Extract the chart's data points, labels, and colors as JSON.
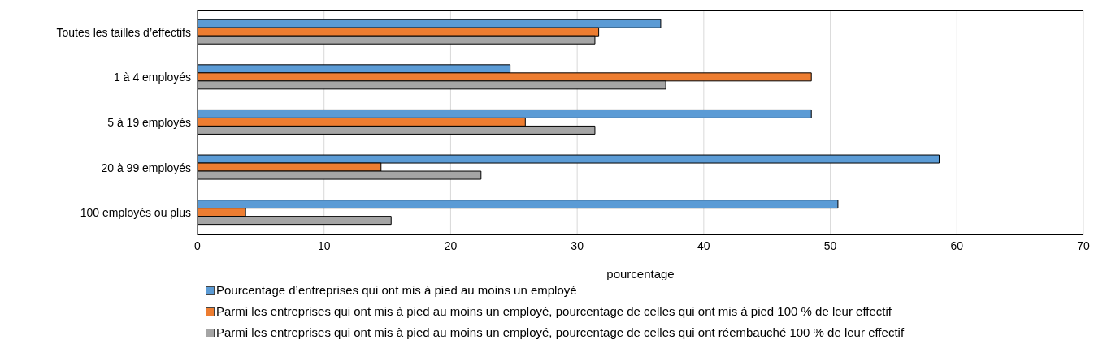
{
  "chart_data": {
    "type": "bar",
    "orientation": "horizontal",
    "xlabel": "pourcentage",
    "categories": [
      "Toutes les tailles d’effectifs",
      "1 à 4 employés",
      "5 à 19 employés",
      "20 à 99 employés",
      "100 employés ou plus"
    ],
    "series": [
      {
        "name": "Pourcentage d’entreprises qui ont mis à pied au moins un employé",
        "color": "#5b9bd5",
        "values": [
          36.6,
          24.7,
          48.5,
          58.6,
          50.6
        ]
      },
      {
        "name": "Parmi les entreprises qui ont mis à pied au moins un employé, pourcentage de celles qui ont mis à pied 100 % de leur effectif",
        "color": "#ed7d31",
        "values": [
          31.7,
          48.5,
          25.9,
          14.5,
          3.8
        ]
      },
      {
        "name": "Parmi les entreprises qui ont mis à pied au moins un employé, pourcentage de celles qui ont réembauché 100 % de leur effectif",
        "color": "#a5a5a5",
        "values": [
          31.4,
          37.0,
          31.4,
          22.4,
          15.3
        ]
      }
    ],
    "xlim": [
      0,
      70
    ],
    "xticks": [
      0,
      10,
      20,
      30,
      40,
      50,
      60,
      70
    ],
    "grid": "x",
    "legend": "bottom"
  }
}
